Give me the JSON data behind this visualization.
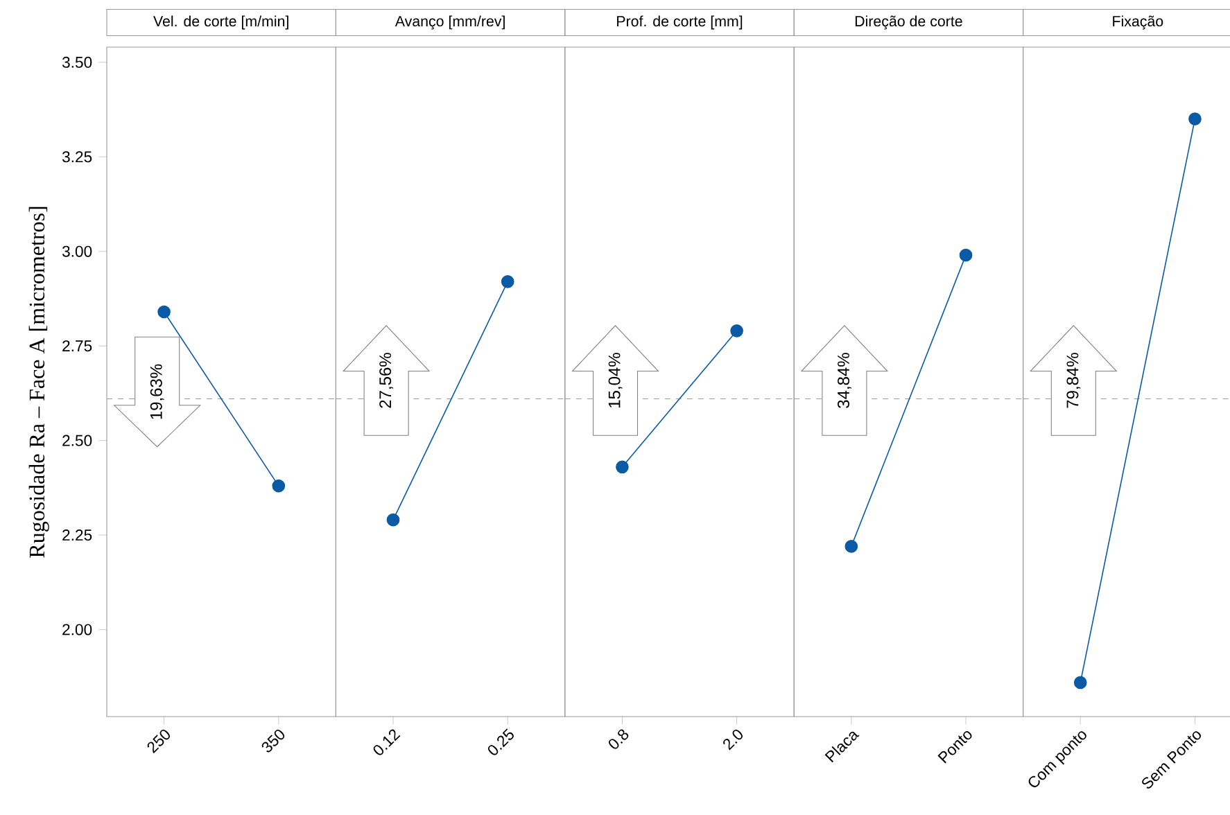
{
  "chart_data": [
    {
      "type": "line",
      "title": "Vel. de corte [m/min]",
      "ylabel": "Rugosidade  Ra – Face A [micrometros]",
      "categories": [
        "250",
        "350"
      ],
      "values": [
        2.84,
        2.38
      ],
      "color": "#0b5aa5",
      "marker": "circle",
      "ylim": [
        1.77,
        3.54
      ],
      "yticks": [
        {
          "value": 2.0,
          "label": "2.00"
        },
        {
          "value": 2.25,
          "label": "2.25"
        },
        {
          "value": 2.5,
          "label": "2.50"
        },
        {
          "value": 2.75,
          "label": "2.75"
        },
        {
          "value": 3.0,
          "label": "3.00"
        },
        {
          "value": 3.25,
          "label": "3.25"
        },
        {
          "value": 3.5,
          "label": "3.50"
        }
      ],
      "ref_lines": [
        {
          "axis": "y",
          "value": 2.61,
          "color": "#999999",
          "line_style": "dashed"
        }
      ],
      "annotations": [
        "19,63%"
      ]
    },
    {
      "type": "line",
      "title": "Avanço [mm/rev]",
      "categories": [
        "0.12",
        "0.25"
      ],
      "values": [
        2.29,
        2.92
      ],
      "color": "#0b5aa5",
      "marker": "circle",
      "ylim": [
        1.77,
        3.54
      ],
      "tick_labels": "x",
      "ref_lines": [
        {
          "axis": "y",
          "value": 2.61,
          "color": "#999999",
          "line_style": "dashed"
        }
      ],
      "annotations": [
        "27,56%"
      ]
    },
    {
      "type": "line",
      "title": "Prof. de corte [mm]",
      "categories": [
        "0.8",
        "2.0"
      ],
      "values": [
        2.43,
        2.79
      ],
      "color": "#0b5aa5",
      "marker": "circle",
      "ylim": [
        1.77,
        3.54
      ],
      "tick_labels": "x",
      "ref_lines": [
        {
          "axis": "y",
          "value": 2.61,
          "color": "#999999",
          "line_style": "dashed"
        }
      ],
      "annotations": [
        "15,04%"
      ]
    },
    {
      "type": "line",
      "title": "Direção de corte",
      "categories": [
        "Placa",
        "Ponto"
      ],
      "values": [
        2.22,
        2.99
      ],
      "color": "#0b5aa5",
      "marker": "circle",
      "ylim": [
        1.77,
        3.54
      ],
      "tick_labels": "x",
      "ref_lines": [
        {
          "axis": "y",
          "value": 2.61,
          "color": "#999999",
          "line_style": "dashed"
        }
      ],
      "annotations": [
        "34,84%"
      ]
    },
    {
      "type": "line",
      "title": "Fixação",
      "categories": [
        "Com ponto",
        "Sem Ponto"
      ],
      "values": [
        1.86,
        3.35
      ],
      "color": "#0b5aa5",
      "marker": "circle",
      "ylim": [
        1.77,
        3.54
      ],
      "tick_labels": "x",
      "ref_lines": [
        {
          "axis": "y",
          "value": 2.61,
          "color": "#999999",
          "line_style": "dashed"
        }
      ],
      "annotations": [
        "79,84%"
      ]
    }
  ]
}
